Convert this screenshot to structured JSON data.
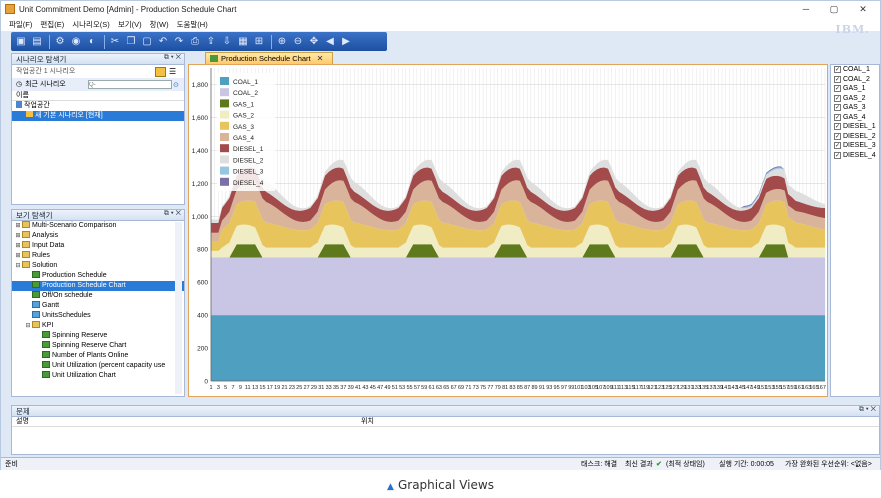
{
  "window": {
    "title": "Unit Commitment Demo [Admin] - Production Schedule Chart",
    "min": "─",
    "max": "▢",
    "close": "✕"
  },
  "menu": [
    "파일(F)",
    "편집(E)",
    "시나리오(S)",
    "보기(V)",
    "창(W)",
    "도움말(H)"
  ],
  "brand": "IBM.",
  "scenario_explorer": {
    "title": "시나리오 탐색기",
    "workspace_label": "작업공간 1 시나리오",
    "recent_label": "최근 시나리오",
    "search_placeholder": "Q-",
    "name_header": "이름",
    "items": [
      "작업공간",
      "새 기본 시나리오 [현재]"
    ]
  },
  "view_explorer": {
    "title": "보기 탐색기",
    "items": [
      {
        "label": "Multi-Scenario Comparison",
        "icon": "folder-icon"
      },
      {
        "label": "Analysis",
        "icon": "folder-icon"
      },
      {
        "label": "Input Data",
        "icon": "folder-icon"
      },
      {
        "label": "Rules",
        "icon": "folder-icon"
      },
      {
        "label": "Solution",
        "icon": "folder-icon"
      },
      {
        "label": "Production Schedule",
        "icon": "table-icon"
      },
      {
        "label": "Production Schedule Chart",
        "icon": "chart-icon"
      },
      {
        "label": "Off/On schedule",
        "icon": "table-icon"
      },
      {
        "label": "Gantt",
        "icon": "gantt-icon"
      },
      {
        "label": "UnitsSchedules",
        "icon": "gantt-icon"
      },
      {
        "label": "KPI",
        "icon": "folder-icon"
      },
      {
        "label": "Spinning Reserve",
        "icon": "table-icon"
      },
      {
        "label": "Spinning Reserve Chart",
        "icon": "chart-icon"
      },
      {
        "label": "Number of Plants Online",
        "icon": "table-icon"
      },
      {
        "label": "Unit Utilization (percent capacity use",
        "icon": "table-icon"
      },
      {
        "label": "Unit Utilization Chart",
        "icon": "chart-icon"
      }
    ]
  },
  "chart_tab": {
    "label": "Production Schedule Chart",
    "close": "✕"
  },
  "chart_data": {
    "type": "area",
    "stacked": true,
    "x": [
      1,
      168
    ],
    "x_tick_step": 2,
    "ylim": [
      0,
      1900
    ],
    "y_ticks": [
      0,
      200,
      400,
      600,
      800,
      1000,
      1200,
      1400,
      1600,
      1800
    ],
    "grid": true,
    "legend_placement": "top-left",
    "series": [
      {
        "name": "COAL_1",
        "color": "#4fa0c0",
        "values_level": 400
      },
      {
        "name": "COAL_2",
        "color": "#c9c5e4",
        "values_level": 350
      },
      {
        "name": "GAS_1",
        "color": "#5e7a1c",
        "values_level": "0-80 peaks"
      },
      {
        "name": "GAS_2",
        "color": "#f0ecc4",
        "values_level": "0-120"
      },
      {
        "name": "GAS_3",
        "color": "#e8c45c",
        "values_level": "120-160"
      },
      {
        "name": "GAS_4",
        "color": "#d9b49a",
        "values_level": "60-140"
      },
      {
        "name": "DIESEL_1",
        "color": "#a34a4a",
        "values_level": "60-90"
      },
      {
        "name": "DIESEL_2",
        "color": "#dedede",
        "values_level": "0-70"
      },
      {
        "name": "DIESEL_3",
        "color": "#96c6e0",
        "values_level": "0-10"
      },
      {
        "name": "DIESEL_4",
        "color": "#7a6fa6",
        "values_level": "0-10"
      }
    ]
  },
  "series_panel": {
    "items": [
      "COAL_1",
      "COAL_2",
      "GAS_1",
      "GAS_2",
      "GAS_3",
      "GAS_4",
      "DIESEL_1",
      "DIESEL_2",
      "DIESEL_3",
      "DIESEL_4"
    ]
  },
  "problems": {
    "title": "문제",
    "col_desc": "설명",
    "col_loc": "위치"
  },
  "status": {
    "ready": "준비",
    "task": "태스크: 해결",
    "latest": "최신 결과",
    "opt": "(최적 상태임)",
    "runtime": "실행 기간: 0:00:05",
    "priority": "가장 완화된 우선순위: <없음>"
  },
  "caption": "Graphical Views"
}
